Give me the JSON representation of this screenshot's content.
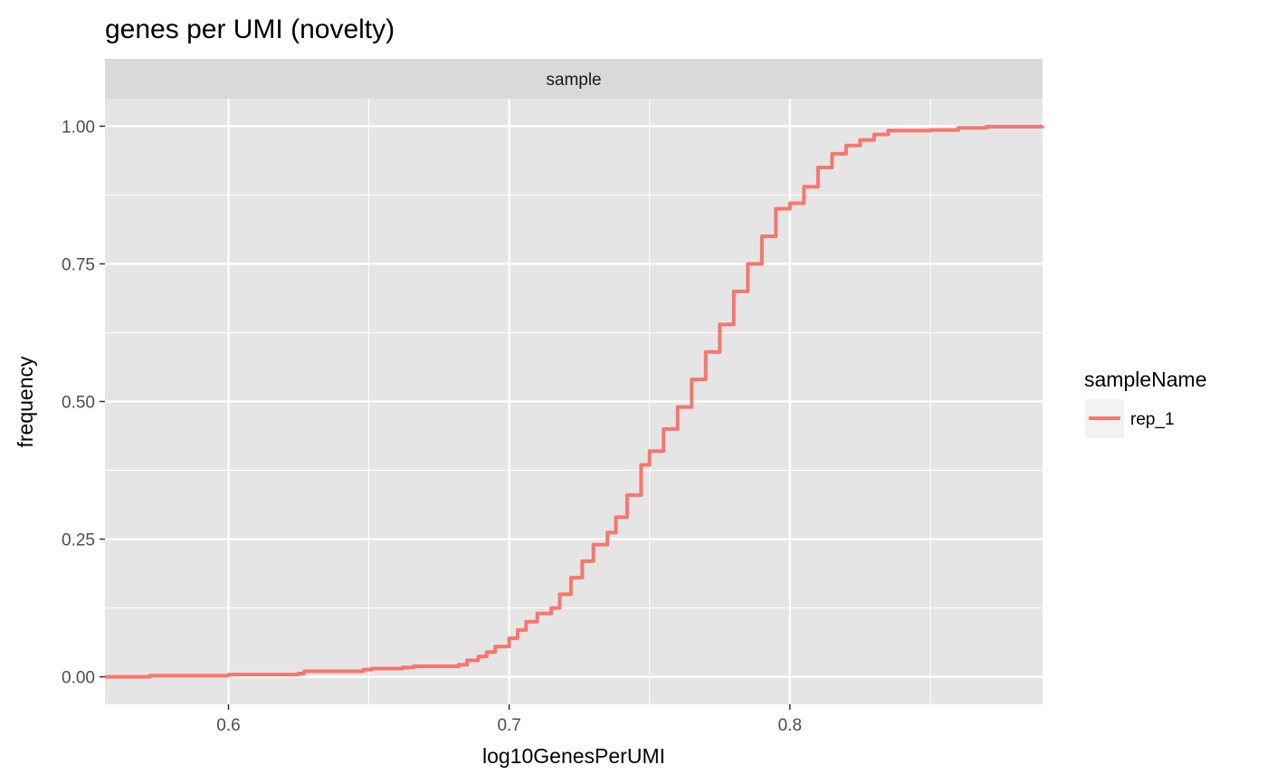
{
  "chart_data": {
    "type": "line",
    "title": "genes per UMI (novelty)",
    "facet_label": "sample",
    "xlabel": "log10GenesPerUMI",
    "ylabel": "frequency",
    "xlim": [
      0.556,
      0.89
    ],
    "ylim": [
      -0.05,
      1.05
    ],
    "x_ticks": [
      0.6,
      0.7,
      0.8
    ],
    "x_tick_labels": [
      "0.6",
      "0.7",
      "0.8"
    ],
    "y_ticks": [
      0,
      0.25,
      0.5,
      0.75,
      1.0
    ],
    "y_tick_labels": [
      "0.00",
      "0.25",
      "0.50",
      "0.75",
      "1.00"
    ],
    "grid": true,
    "legend": {
      "title": "sampleName",
      "position": "right",
      "entries": [
        {
          "label": "rep_1",
          "color": "#F8766D"
        }
      ]
    },
    "series": [
      {
        "name": "rep_1",
        "color": "#F8766D",
        "step": true,
        "x": [
          0.556,
          0.572,
          0.6,
          0.625,
          0.627,
          0.648,
          0.651,
          0.662,
          0.666,
          0.682,
          0.685,
          0.689,
          0.692,
          0.695,
          0.7,
          0.703,
          0.706,
          0.71,
          0.715,
          0.718,
          0.722,
          0.726,
          0.73,
          0.735,
          0.738,
          0.742,
          0.747,
          0.75,
          0.755,
          0.76,
          0.765,
          0.77,
          0.775,
          0.78,
          0.785,
          0.79,
          0.795,
          0.8,
          0.805,
          0.81,
          0.815,
          0.82,
          0.825,
          0.83,
          0.835,
          0.85,
          0.86,
          0.87,
          0.89
        ],
        "y": [
          0.0,
          0.002,
          0.004,
          0.006,
          0.01,
          0.013,
          0.015,
          0.017,
          0.019,
          0.022,
          0.03,
          0.037,
          0.045,
          0.055,
          0.07,
          0.085,
          0.1,
          0.115,
          0.125,
          0.15,
          0.18,
          0.21,
          0.24,
          0.262,
          0.29,
          0.33,
          0.385,
          0.41,
          0.45,
          0.49,
          0.54,
          0.59,
          0.64,
          0.7,
          0.75,
          0.8,
          0.85,
          0.86,
          0.89,
          0.925,
          0.95,
          0.965,
          0.975,
          0.985,
          0.992,
          0.993,
          0.997,
          0.999,
          1.0
        ]
      }
    ]
  },
  "colors": {
    "panel_background": "#E5E5E5",
    "strip_background": "#D9D9D9",
    "grid": "#FFFFFF",
    "legend_key_background": "#F2F2F2"
  }
}
